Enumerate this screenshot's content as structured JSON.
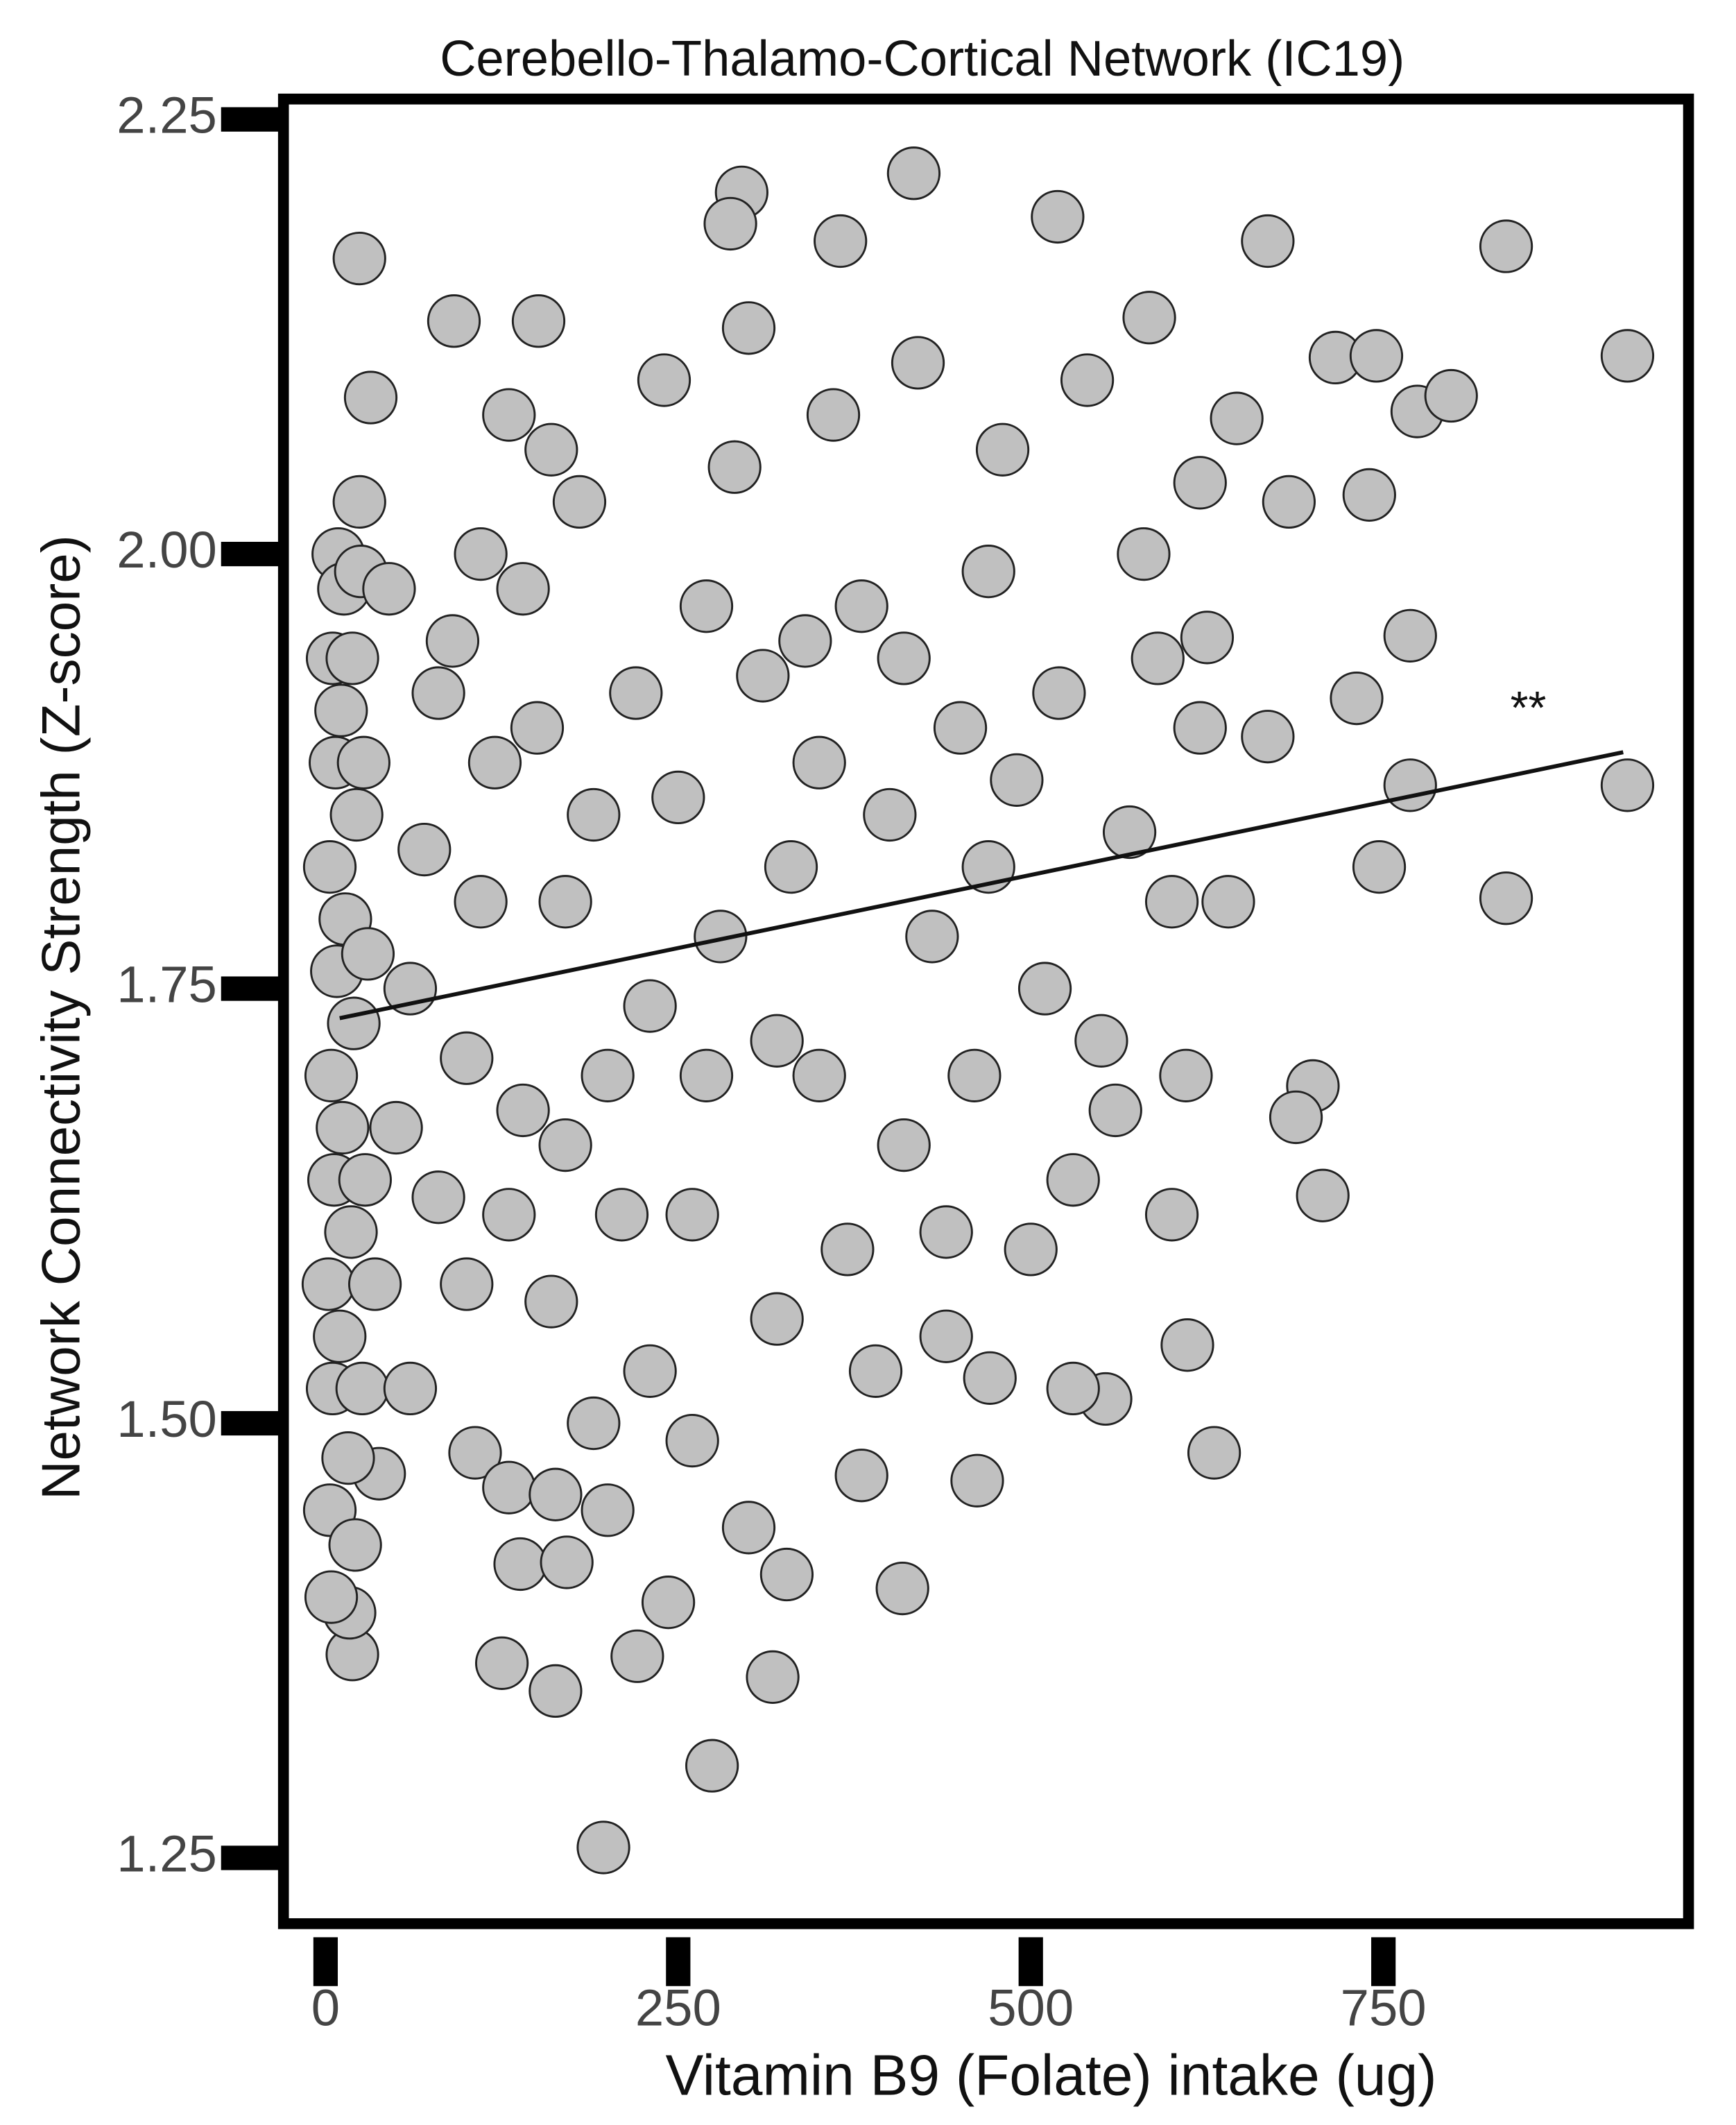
{
  "chart_data": {
    "type": "scatter",
    "title": "Cerebello-Thalamo-Cortical Network (IC19)",
    "x_label": "Vitamin B9 (Folate) intake  (ug)",
    "y_label": "Network Connectivity Strength (Z-score)",
    "annotation": "**",
    "color": "#c0c0c0",
    "x": [
      24,
      668,
      837,
      923,
      716,
      745,
      774,
      798,
      646,
      620,
      683,
      740,
      625,
      769,
      731,
      769,
      923,
      747,
      837,
      668,
      700,
      707,
      688,
      630,
      611,
      553,
      197,
      274,
      125,
      163,
      317,
      221,
      138,
      171,
      365,
      295,
      417,
      287,
      519,
      91,
      151,
      584,
      19,
      17,
      327,
      409,
      243,
      462,
      471,
      38,
      106,
      130,
      163,
      3,
      5,
      2,
      6,
      4,
      8,
      3,
      7,
      5,
      9,
      4,
      10,
      12,
      14,
      11,
      13,
      16,
      18,
      20,
      22,
      19,
      24,
      26,
      28,
      30,
      27,
      32,
      21,
      25,
      35,
      60,
      80,
      100,
      70,
      90,
      110,
      130,
      150,
      170,
      140,
      160,
      190,
      210,
      230,
      250,
      270,
      290,
      310,
      330,
      350,
      370,
      390,
      410,
      430,
      450,
      470,
      490,
      510,
      530,
      550,
      570,
      590,
      480,
      420,
      360,
      300,
      240,
      180,
      120,
      60,
      200,
      260,
      320,
      380,
      440,
      500,
      560,
      600,
      460,
      400,
      340,
      280,
      220,
      160,
      100,
      140,
      200,
      260,
      320,
      380,
      440,
      520,
      580,
      540,
      300,
      230,
      170,
      110,
      80,
      350,
      410,
      470,
      530,
      270,
      190,
      130,
      50,
      45,
      620,
      640,
      610,
      600
    ],
    "y": [
      2.17,
      2.18,
      2.177,
      2.114,
      2.113,
      2.114,
      2.082,
      2.091,
      2.078,
      2.041,
      2.03,
      2.034,
      1.952,
      1.953,
      1.917,
      1.867,
      1.867,
      1.82,
      1.802,
      1.895,
      1.694,
      1.631,
      1.676,
      1.483,
      1.545,
      1.514,
      1.256,
      1.303,
      1.362,
      1.346,
      1.354,
      1.366,
      1.419,
      1.42,
      2.18,
      2.208,
      2.219,
      2.19,
      2.194,
      2.134,
      2.134,
      2.136,
      1.367,
      1.391,
      1.413,
      1.405,
      1.397,
      1.467,
      1.526,
      1.471,
      1.483,
      1.463,
      1.459,
      1.45,
      1.52,
      1.58,
      1.64,
      1.7,
      1.76,
      1.82,
      1.88,
      1.94,
      2.0,
      1.4,
      1.55,
      1.67,
      1.79,
      1.91,
      1.98,
      1.48,
      1.61,
      1.73,
      1.85,
      1.94,
      2.03,
      1.52,
      1.64,
      1.77,
      1.88,
      2.09,
      1.43,
      1.99,
      1.58,
      1.52,
      1.63,
      1.71,
      1.83,
      1.95,
      2.0,
      2.08,
      1.9,
      1.8,
      1.68,
      1.57,
      1.5,
      1.62,
      1.74,
      1.86,
      1.97,
      2.05,
      1.93,
      1.82,
      1.7,
      1.6,
      1.53,
      1.66,
      1.78,
      1.9,
      1.99,
      1.87,
      1.75,
      1.64,
      1.72,
      1.84,
      1.94,
      2.06,
      2.11,
      2.08,
      2.13,
      2.1,
      2.03,
      1.88,
      1.75,
      1.45,
      1.49,
      1.56,
      1.47,
      1.55,
      1.6,
      1.68,
      1.8,
      1.7,
      1.85,
      1.95,
      1.78,
      1.92,
      2.06,
      1.58,
      1.98,
      1.7,
      1.62,
      1.72,
      1.97,
      1.61,
      1.92,
      2.0,
      2.1,
      1.44,
      1.53,
      1.66,
      1.8,
      1.92,
      1.88,
      1.94,
      1.82,
      1.52,
      1.7,
      1.85,
      1.62,
      1.67,
      1.98,
      1.9,
      1.8,
      1.7,
      1.62
    ],
    "trend_line": {
      "x": [
        10,
        920
      ],
      "y": [
        1.733,
        1.886
      ]
    },
    "xlim": [
      -33.7,
      969.2
    ],
    "ylim": [
      1.2106,
      2.2625
    ],
    "xticks": [
      0,
      250,
      500,
      750
    ],
    "yticks": [
      {
        "value": 1.25,
        "label": "1.25"
      },
      {
        "value": 1.5,
        "label": "1.50"
      },
      {
        "value": 1.75,
        "label": "1.75"
      },
      {
        "value": 2,
        "label": "2.00"
      },
      {
        "value": 2.25,
        "label": "2.25"
      }
    ]
  }
}
